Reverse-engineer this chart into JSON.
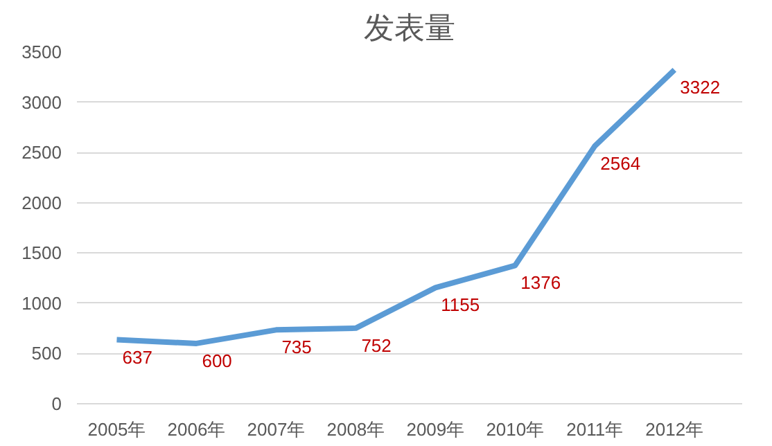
{
  "chart_data": {
    "type": "line",
    "title": "发表量",
    "categories": [
      "2005年",
      "2006年",
      "2007年",
      "2008年",
      "2009年",
      "2010年",
      "2011年",
      "2012年"
    ],
    "series": [
      {
        "color": "#5b9bd5",
        "values": [
          637,
          600,
          735,
          752,
          1155,
          1376,
          2564,
          3322
        ]
      }
    ],
    "ylim": [
      0,
      3500
    ],
    "yticks": [
      0,
      500,
      1000,
      1500,
      2000,
      2500,
      3000,
      3500
    ],
    "grid": "y",
    "data_labels": true,
    "line_style": "solid"
  }
}
